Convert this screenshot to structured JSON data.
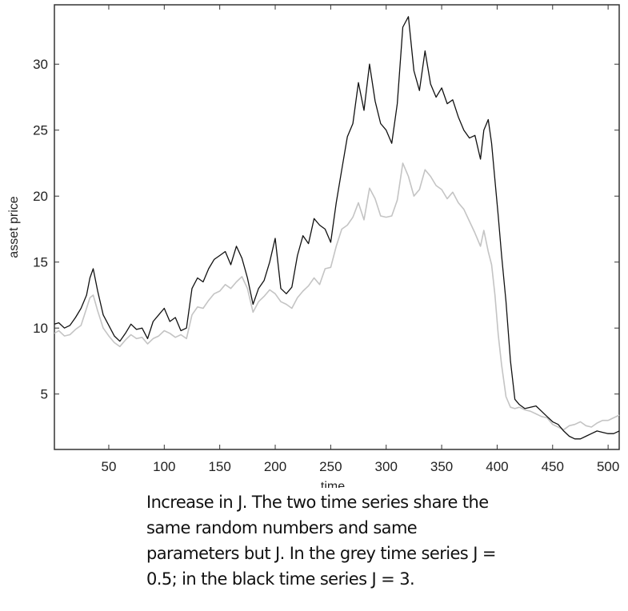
{
  "chart_data": {
    "type": "line",
    "xlabel": "time",
    "ylabel": "asset price",
    "xlim": [
      1,
      510
    ],
    "ylim": [
      0.8,
      34.5
    ],
    "xticks": [
      50,
      100,
      150,
      200,
      250,
      300,
      350,
      400,
      450,
      500
    ],
    "yticks": [
      5,
      10,
      15,
      20,
      25,
      30
    ],
    "grid": false,
    "series": [
      {
        "color": "#c4c4c4",
        "x": [
          1,
          5,
          10,
          15,
          20,
          25,
          30,
          33,
          36,
          40,
          45,
          50,
          55,
          60,
          65,
          70,
          75,
          80,
          85,
          90,
          95,
          100,
          105,
          110,
          115,
          120,
          125,
          130,
          135,
          140,
          145,
          150,
          155,
          160,
          165,
          170,
          175,
          180,
          185,
          190,
          195,
          200,
          205,
          210,
          215,
          220,
          225,
          230,
          235,
          240,
          245,
          250,
          255,
          260,
          265,
          270,
          275,
          280,
          285,
          290,
          295,
          300,
          305,
          310,
          315,
          320,
          325,
          330,
          335,
          340,
          345,
          350,
          355,
          360,
          365,
          370,
          375,
          380,
          385,
          388,
          392,
          395,
          398,
          401,
          404,
          408,
          412,
          416,
          420,
          425,
          430,
          435,
          440,
          445,
          450,
          455,
          460,
          465,
          470,
          475,
          480,
          485,
          490,
          495,
          500,
          505,
          510
        ],
        "y": [
          9.6,
          9.8,
          9.4,
          9.5,
          9.9,
          10.2,
          11.5,
          12.3,
          12.5,
          11.3,
          10.0,
          9.4,
          8.9,
          8.6,
          9.1,
          9.5,
          9.2,
          9.3,
          8.8,
          9.2,
          9.4,
          9.8,
          9.6,
          9.3,
          9.5,
          9.2,
          11.0,
          11.6,
          11.5,
          12.1,
          12.6,
          12.8,
          13.3,
          13.0,
          13.5,
          13.9,
          13.0,
          11.2,
          12.0,
          12.4,
          12.9,
          12.6,
          12.0,
          11.8,
          11.5,
          12.3,
          12.8,
          13.2,
          13.8,
          13.3,
          14.5,
          14.6,
          16.2,
          17.5,
          17.8,
          18.4,
          19.5,
          18.2,
          20.6,
          19.8,
          18.5,
          18.4,
          18.5,
          19.7,
          22.5,
          21.5,
          20.0,
          20.5,
          22.0,
          21.5,
          20.8,
          20.5,
          19.8,
          20.3,
          19.5,
          19.0,
          18.1,
          17.2,
          16.2,
          17.4,
          15.8,
          14.8,
          12.5,
          9.5,
          7.2,
          4.8,
          4.0,
          3.9,
          4.0,
          3.8,
          3.7,
          3.5,
          3.3,
          3.2,
          2.7,
          2.5,
          2.3,
          2.6,
          2.7,
          2.9,
          2.6,
          2.5,
          2.8,
          3.0,
          3.0,
          3.2,
          3.4
        ]
      },
      {
        "color": "#111111",
        "x": [
          1,
          5,
          10,
          15,
          20,
          25,
          30,
          33,
          36,
          40,
          45,
          50,
          55,
          60,
          65,
          70,
          75,
          80,
          85,
          90,
          95,
          100,
          105,
          110,
          115,
          120,
          125,
          130,
          135,
          140,
          145,
          150,
          155,
          160,
          165,
          170,
          175,
          180,
          185,
          190,
          195,
          200,
          205,
          210,
          215,
          220,
          225,
          230,
          235,
          240,
          245,
          250,
          255,
          260,
          265,
          270,
          275,
          280,
          285,
          290,
          295,
          300,
          305,
          310,
          315,
          320,
          325,
          330,
          335,
          340,
          345,
          350,
          355,
          360,
          365,
          370,
          375,
          380,
          385,
          388,
          392,
          395,
          398,
          401,
          404,
          408,
          412,
          416,
          420,
          425,
          430,
          435,
          440,
          445,
          450,
          455,
          460,
          465,
          470,
          475,
          480,
          485,
          490,
          495,
          500,
          505,
          510
        ],
        "y": [
          10.3,
          10.4,
          10.0,
          10.2,
          10.8,
          11.5,
          12.5,
          13.8,
          14.5,
          12.8,
          11.0,
          10.2,
          9.4,
          9.0,
          9.6,
          10.3,
          9.9,
          10.0,
          9.2,
          10.5,
          11.0,
          11.5,
          10.5,
          10.8,
          9.8,
          10.0,
          13.0,
          13.8,
          13.5,
          14.5,
          15.2,
          15.5,
          15.8,
          14.8,
          16.2,
          15.3,
          13.8,
          11.8,
          13.0,
          13.6,
          15.0,
          16.8,
          13.0,
          12.6,
          13.1,
          15.5,
          17.0,
          16.4,
          18.3,
          17.8,
          17.5,
          16.5,
          19.5,
          22.0,
          24.5,
          25.5,
          28.6,
          26.5,
          30.0,
          27.2,
          25.5,
          25.0,
          24.0,
          27.0,
          32.8,
          33.6,
          29.5,
          28.0,
          31.0,
          28.5,
          27.5,
          28.2,
          27.0,
          27.3,
          26.0,
          25.0,
          24.4,
          24.6,
          22.8,
          25.0,
          25.8,
          24.0,
          21.2,
          18.5,
          15.5,
          12.0,
          7.5,
          4.6,
          4.2,
          3.9,
          4.0,
          4.1,
          3.7,
          3.3,
          2.9,
          2.7,
          2.2,
          1.8,
          1.6,
          1.6,
          1.8,
          2.0,
          2.2,
          2.1,
          2.0,
          2.0,
          2.2
        ]
      }
    ]
  },
  "caption": {
    "line1": "Increase in J. The two time series share the",
    "line2": "same random numbers and same",
    "line3": "parameters but J. In the grey time series J =",
    "line4": "0.5;  in the black time series J = 3."
  }
}
